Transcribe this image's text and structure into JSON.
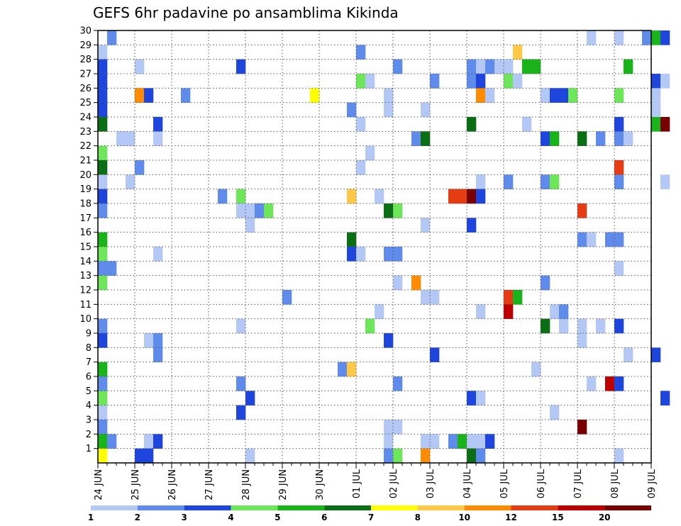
{
  "chart_data": {
    "type": "heatmap",
    "title": "GEFS 6hr padavine po ansamblima Kikinda",
    "x_tick_labels": [
      "24 JUN",
      "25 JUN",
      "26 JUN",
      "27 JUN",
      "28 JUN",
      "29 JUN",
      "30 JUN",
      "01 JUL",
      "02 JUL",
      "03 JUL",
      "04 JUL",
      "05 JUL",
      "06 JUL",
      "07 JUL",
      "08 JUL",
      "09 JUL"
    ],
    "y_tick_labels": [
      "1",
      "2",
      "3",
      "4",
      "5",
      "6",
      "7",
      "8",
      "9",
      "10",
      "11",
      "12",
      "13",
      "14",
      "15",
      "16",
      "17",
      "18",
      "19",
      "20",
      "21",
      "22",
      "23",
      "24",
      "25",
      "26",
      "27",
      "28",
      "29",
      "30"
    ],
    "x_range": [
      "24 JUN 00Z",
      "09 JUL 00Z"
    ],
    "time_step_hours": 6,
    "y_range": [
      0,
      30
    ],
    "grid": true,
    "colorbar": {
      "ticks": [
        "1",
        "2",
        "3",
        "4",
        "5",
        "6",
        "7",
        "8",
        "10",
        "12",
        "15",
        "20"
      ],
      "colors": [
        "#b4c8f5",
        "#5f8ceb",
        "#1e46dc",
        "#6ee65a",
        "#19b419",
        "#0a6e14",
        "#ffff00",
        "#ffc846",
        "#ff8c00",
        "#e63c14",
        "#be0000",
        "#780000"
      ]
    },
    "colors": {
      "c1": "#b4c8f5",
      "c2": "#5f8ceb",
      "c3": "#1e46dc",
      "c4": "#6ee65a",
      "c5": "#19b419",
      "c6": "#0a6e14",
      "c7": "#ffff00",
      "c8": "#ffc846",
      "c10": "#ff8c00",
      "c12": "#e63c14",
      "c15": "#be0000",
      "c20": "#780000"
    },
    "cells": [
      [
        1,
        30,
        "c2"
      ],
      [
        53,
        30,
        "c1"
      ],
      [
        56,
        30,
        "c1"
      ],
      [
        59,
        30,
        "c2"
      ],
      [
        60,
        30,
        "c5"
      ],
      [
        61,
        30,
        "c3"
      ],
      [
        0,
        29,
        "c1"
      ],
      [
        28,
        29,
        "c2"
      ],
      [
        45,
        29,
        "c8"
      ],
      [
        0,
        28,
        "c3"
      ],
      [
        4,
        28,
        "c1"
      ],
      [
        15,
        28,
        "c3"
      ],
      [
        32,
        28,
        "c2"
      ],
      [
        40,
        28,
        "c2"
      ],
      [
        41,
        28,
        "c1"
      ],
      [
        42,
        28,
        "c2"
      ],
      [
        43,
        28,
        "c1"
      ],
      [
        44,
        28,
        "c1"
      ],
      [
        46,
        28,
        "c5"
      ],
      [
        47,
        28,
        "c5"
      ],
      [
        57,
        28,
        "c5"
      ],
      [
        0,
        27,
        "c3"
      ],
      [
        28,
        27,
        "c4"
      ],
      [
        29,
        27,
        "c1"
      ],
      [
        36,
        27,
        "c2"
      ],
      [
        40,
        27,
        "c2"
      ],
      [
        41,
        27,
        "c3"
      ],
      [
        44,
        27,
        "c4"
      ],
      [
        45,
        27,
        "c1"
      ],
      [
        60,
        27,
        "c3"
      ],
      [
        61,
        27,
        "c1"
      ],
      [
        0,
        26,
        "c3"
      ],
      [
        4,
        26,
        "c10"
      ],
      [
        5,
        26,
        "c3"
      ],
      [
        9,
        26,
        "c2"
      ],
      [
        23,
        26,
        "c7"
      ],
      [
        31,
        26,
        "c1"
      ],
      [
        41,
        26,
        "c10"
      ],
      [
        42,
        26,
        "c1"
      ],
      [
        48,
        26,
        "c1"
      ],
      [
        49,
        26,
        "c3"
      ],
      [
        50,
        26,
        "c3"
      ],
      [
        51,
        26,
        "c4"
      ],
      [
        56,
        26,
        "c4"
      ],
      [
        60,
        26,
        "c1"
      ],
      [
        0,
        25,
        "c3"
      ],
      [
        27,
        25,
        "c2"
      ],
      [
        31,
        25,
        "c1"
      ],
      [
        35,
        25,
        "c1"
      ],
      [
        60,
        25,
        "c1"
      ],
      [
        0,
        24,
        "c6"
      ],
      [
        6,
        24,
        "c3"
      ],
      [
        28,
        24,
        "c1"
      ],
      [
        40,
        24,
        "c6"
      ],
      [
        46,
        24,
        "c1"
      ],
      [
        56,
        24,
        "c3"
      ],
      [
        60,
        24,
        "c5"
      ],
      [
        61,
        24,
        "c20"
      ],
      [
        2,
        23,
        "c1"
      ],
      [
        3,
        23,
        "c1"
      ],
      [
        6,
        23,
        "c1"
      ],
      [
        34,
        23,
        "c2"
      ],
      [
        35,
        23,
        "c6"
      ],
      [
        48,
        23,
        "c3"
      ],
      [
        49,
        23,
        "c5"
      ],
      [
        52,
        23,
        "c6"
      ],
      [
        54,
        23,
        "c2"
      ],
      [
        56,
        23,
        "c2"
      ],
      [
        57,
        23,
        "c1"
      ],
      [
        0,
        22,
        "c4"
      ],
      [
        29,
        22,
        "c1"
      ],
      [
        0,
        21,
        "c6"
      ],
      [
        4,
        21,
        "c2"
      ],
      [
        28,
        21,
        "c1"
      ],
      [
        56,
        21,
        "c12"
      ],
      [
        0,
        20,
        "c1"
      ],
      [
        3,
        20,
        "c1"
      ],
      [
        41,
        20,
        "c1"
      ],
      [
        44,
        20,
        "c2"
      ],
      [
        48,
        20,
        "c2"
      ],
      [
        49,
        20,
        "c4"
      ],
      [
        56,
        20,
        "c2"
      ],
      [
        61,
        20,
        "c1"
      ],
      [
        0,
        19,
        "c3"
      ],
      [
        13,
        19,
        "c2"
      ],
      [
        15,
        19,
        "c4"
      ],
      [
        27,
        19,
        "c8"
      ],
      [
        30,
        19,
        "c1"
      ],
      [
        38,
        19,
        "c12"
      ],
      [
        39,
        19,
        "c12"
      ],
      [
        40,
        19,
        "c20"
      ],
      [
        41,
        19,
        "c3"
      ],
      [
        0,
        18,
        "c2"
      ],
      [
        15,
        18,
        "c1"
      ],
      [
        16,
        18,
        "c1"
      ],
      [
        17,
        18,
        "c2"
      ],
      [
        18,
        18,
        "c4"
      ],
      [
        31,
        18,
        "c6"
      ],
      [
        32,
        18,
        "c4"
      ],
      [
        52,
        18,
        "c12"
      ],
      [
        16,
        17,
        "c1"
      ],
      [
        35,
        17,
        "c1"
      ],
      [
        40,
        17,
        "c3"
      ],
      [
        0,
        16,
        "c5"
      ],
      [
        27,
        16,
        "c6"
      ],
      [
        52,
        16,
        "c2"
      ],
      [
        53,
        16,
        "c1"
      ],
      [
        55,
        16,
        "c2"
      ],
      [
        56,
        16,
        "c2"
      ],
      [
        0,
        15,
        "c4"
      ],
      [
        6,
        15,
        "c1"
      ],
      [
        27,
        15,
        "c3"
      ],
      [
        28,
        15,
        "c1"
      ],
      [
        31,
        15,
        "c2"
      ],
      [
        32,
        15,
        "c2"
      ],
      [
        0,
        14,
        "c2"
      ],
      [
        1,
        14,
        "c2"
      ],
      [
        56,
        14,
        "c1"
      ],
      [
        0,
        13,
        "c4"
      ],
      [
        32,
        13,
        "c1"
      ],
      [
        34,
        13,
        "c10"
      ],
      [
        48,
        13,
        "c2"
      ],
      [
        20,
        12,
        "c2"
      ],
      [
        35,
        12,
        "c1"
      ],
      [
        36,
        12,
        "c1"
      ],
      [
        44,
        12,
        "c12"
      ],
      [
        45,
        12,
        "c5"
      ],
      [
        30,
        11,
        "c1"
      ],
      [
        41,
        11,
        "c1"
      ],
      [
        44,
        11,
        "c15"
      ],
      [
        49,
        11,
        "c1"
      ],
      [
        50,
        11,
        "c2"
      ],
      [
        0,
        10,
        "c2"
      ],
      [
        15,
        10,
        "c1"
      ],
      [
        29,
        10,
        "c4"
      ],
      [
        48,
        10,
        "c6"
      ],
      [
        50,
        10,
        "c1"
      ],
      [
        52,
        10,
        "c1"
      ],
      [
        54,
        10,
        "c1"
      ],
      [
        56,
        10,
        "c3"
      ],
      [
        0,
        9,
        "c3"
      ],
      [
        5,
        9,
        "c1"
      ],
      [
        6,
        9,
        "c2"
      ],
      [
        31,
        9,
        "c3"
      ],
      [
        52,
        9,
        "c1"
      ],
      [
        6,
        8,
        "c2"
      ],
      [
        36,
        8,
        "c3"
      ],
      [
        57,
        8,
        "c1"
      ],
      [
        60,
        8,
        "c3"
      ],
      [
        0,
        7,
        "c5"
      ],
      [
        26,
        7,
        "c2"
      ],
      [
        27,
        7,
        "c8"
      ],
      [
        47,
        7,
        "c1"
      ],
      [
        0,
        6,
        "c2"
      ],
      [
        15,
        6,
        "c2"
      ],
      [
        32,
        6,
        "c2"
      ],
      [
        53,
        6,
        "c1"
      ],
      [
        55,
        6,
        "c15"
      ],
      [
        56,
        6,
        "c3"
      ],
      [
        0,
        5,
        "c4"
      ],
      [
        16,
        5,
        "c3"
      ],
      [
        40,
        5,
        "c3"
      ],
      [
        41,
        5,
        "c1"
      ],
      [
        61,
        5,
        "c3"
      ],
      [
        0,
        4,
        "c1"
      ],
      [
        15,
        4,
        "c3"
      ],
      [
        49,
        4,
        "c1"
      ],
      [
        0,
        3,
        "c2"
      ],
      [
        31,
        3,
        "c1"
      ],
      [
        32,
        3,
        "c1"
      ],
      [
        52,
        3,
        "c20"
      ],
      [
        0,
        2,
        "c5"
      ],
      [
        1,
        2,
        "c2"
      ],
      [
        5,
        2,
        "c1"
      ],
      [
        6,
        2,
        "c3"
      ],
      [
        31,
        2,
        "c1"
      ],
      [
        35,
        2,
        "c1"
      ],
      [
        36,
        2,
        "c1"
      ],
      [
        38,
        2,
        "c2"
      ],
      [
        39,
        2,
        "c5"
      ],
      [
        40,
        2,
        "c1"
      ],
      [
        41,
        2,
        "c1"
      ],
      [
        42,
        2,
        "c3"
      ],
      [
        0,
        1,
        "c7"
      ],
      [
        4,
        1,
        "c3"
      ],
      [
        5,
        1,
        "c3"
      ],
      [
        16,
        1,
        "c1"
      ],
      [
        31,
        1,
        "c2"
      ],
      [
        32,
        1,
        "c4"
      ],
      [
        35,
        1,
        "c10"
      ],
      [
        40,
        1,
        "c6"
      ],
      [
        41,
        1,
        "c2"
      ],
      [
        56,
        1,
        "c1"
      ]
    ]
  }
}
